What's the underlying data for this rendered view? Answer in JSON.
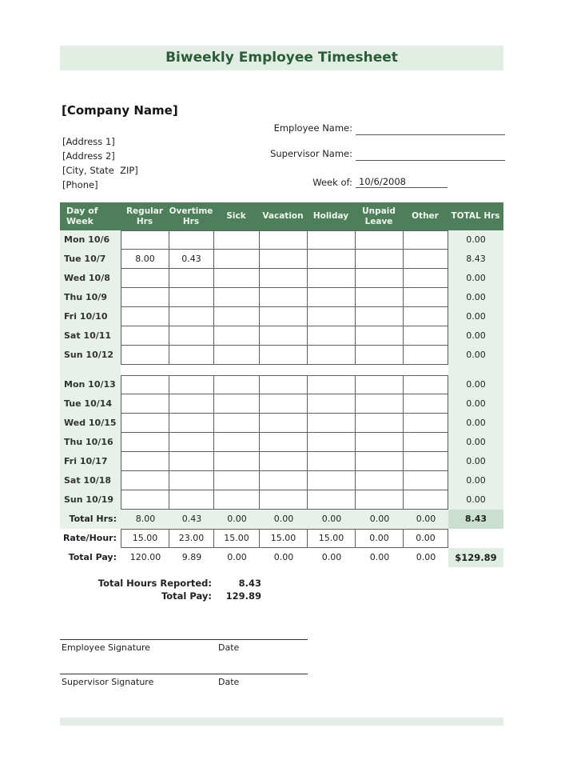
{
  "title": "Biweekly Employee Timesheet",
  "company": {
    "name": "[Company Name]",
    "address1": "[Address 1]",
    "address2": "[Address 2]",
    "city_state_zip": "[City, State  ZIP]",
    "phone": "[Phone]"
  },
  "fields": {
    "employee_name_label": "Employee Name:",
    "employee_name_value": "",
    "supervisor_name_label": "Supervisor Name:",
    "supervisor_name_value": "",
    "week_of_label": "Week of:",
    "week_of_value": "10/6/2008"
  },
  "table": {
    "headers": [
      "Day of Week",
      "Regular Hrs",
      "Overtime Hrs",
      "Sick",
      "Vacation",
      "Holiday",
      "Unpaid Leave",
      "Other",
      "TOTAL Hrs"
    ],
    "week1": [
      {
        "day": "Mon 10/6",
        "cells": [
          "",
          "",
          "",
          "",
          "",
          "",
          ""
        ],
        "total": "0.00"
      },
      {
        "day": "Tue 10/7",
        "cells": [
          "8.00",
          "0.43",
          "",
          "",
          "",
          "",
          ""
        ],
        "total": "8.43"
      },
      {
        "day": "Wed 10/8",
        "cells": [
          "",
          "",
          "",
          "",
          "",
          "",
          ""
        ],
        "total": "0.00"
      },
      {
        "day": "Thu 10/9",
        "cells": [
          "",
          "",
          "",
          "",
          "",
          "",
          ""
        ],
        "total": "0.00"
      },
      {
        "day": "Fri 10/10",
        "cells": [
          "",
          "",
          "",
          "",
          "",
          "",
          ""
        ],
        "total": "0.00"
      },
      {
        "day": "Sat 10/11",
        "cells": [
          "",
          "",
          "",
          "",
          "",
          "",
          ""
        ],
        "total": "0.00"
      },
      {
        "day": "Sun 10/12",
        "cells": [
          "",
          "",
          "",
          "",
          "",
          "",
          ""
        ],
        "total": "0.00"
      }
    ],
    "week2": [
      {
        "day": "Mon 10/13",
        "cells": [
          "",
          "",
          "",
          "",
          "",
          "",
          ""
        ],
        "total": "0.00"
      },
      {
        "day": "Tue 10/14",
        "cells": [
          "",
          "",
          "",
          "",
          "",
          "",
          ""
        ],
        "total": "0.00"
      },
      {
        "day": "Wed 10/15",
        "cells": [
          "",
          "",
          "",
          "",
          "",
          "",
          ""
        ],
        "total": "0.00"
      },
      {
        "day": "Thu 10/16",
        "cells": [
          "",
          "",
          "",
          "",
          "",
          "",
          ""
        ],
        "total": "0.00"
      },
      {
        "day": "Fri 10/17",
        "cells": [
          "",
          "",
          "",
          "",
          "",
          "",
          ""
        ],
        "total": "0.00"
      },
      {
        "day": "Sat 10/18",
        "cells": [
          "",
          "",
          "",
          "",
          "",
          "",
          ""
        ],
        "total": "0.00"
      },
      {
        "day": "Sun 10/19",
        "cells": [
          "",
          "",
          "",
          "",
          "",
          "",
          ""
        ],
        "total": "0.00"
      }
    ],
    "total_hrs_row": {
      "label": "Total Hrs:",
      "values": [
        "8.00",
        "0.43",
        "0.00",
        "0.00",
        "0.00",
        "0.00",
        "0.00"
      ],
      "total": "8.43"
    },
    "rate_row": {
      "label": "Rate/Hour:",
      "values": [
        "15.00",
        "23.00",
        "15.00",
        "15.00",
        "15.00",
        "0.00",
        "0.00"
      ],
      "total": ""
    },
    "pay_row": {
      "label": "Total Pay:",
      "values": [
        "120.00",
        "9.89",
        "0.00",
        "0.00",
        "0.00",
        "0.00",
        "0.00"
      ],
      "total": "$129.89"
    }
  },
  "summary": {
    "hours_label": "Total Hours Reported:",
    "hours_value": "8.43",
    "pay_label": "Total Pay:",
    "pay_value": "129.89"
  },
  "signatures": {
    "employee_label": "Employee Signature",
    "employee_date_label": "Date",
    "supervisor_label": "Supervisor Signature",
    "supervisor_date_label": "Date"
  },
  "colors": {
    "table_header_green": "#4e7e5a",
    "light_green": "#e8f1e9",
    "title_bar_green": "#e2eee4",
    "title_text_green": "#2a5c38",
    "total_highlight_green": "#cbdfd0",
    "pay_highlight_green": "#dfeee2"
  }
}
